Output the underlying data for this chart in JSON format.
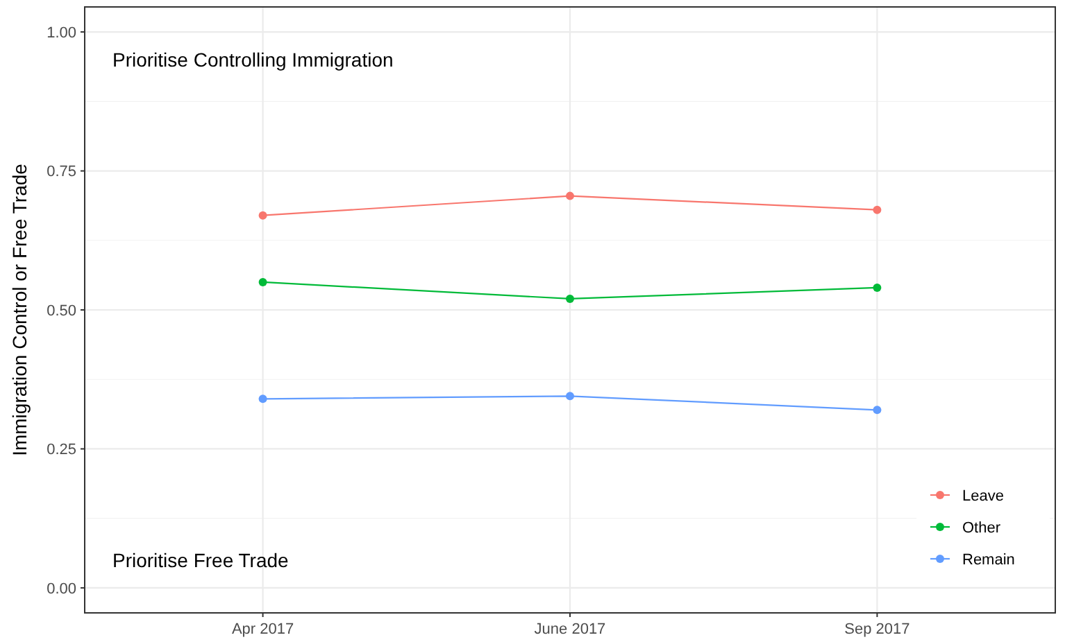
{
  "chart_data": {
    "type": "line",
    "ylabel": "Immigration Control or Free Trade",
    "categories": [
      "Apr 2017",
      "June 2017",
      "Sep 2017"
    ],
    "series": [
      {
        "name": "Leave",
        "color": "#f8766d",
        "values": [
          0.67,
          0.705,
          0.68
        ]
      },
      {
        "name": "Other",
        "color": "#00ba38",
        "values": [
          0.55,
          0.52,
          0.54
        ]
      },
      {
        "name": "Remain",
        "color": "#619cff",
        "values": [
          0.34,
          0.345,
          0.32
        ]
      }
    ],
    "ylim": [
      -0.045,
      1.045
    ],
    "yticks": [
      {
        "value": 0,
        "label": "0.00"
      },
      {
        "value": 0.25,
        "label": "0.25"
      },
      {
        "value": 0.5,
        "label": "0.50"
      },
      {
        "value": 0.75,
        "label": "0.75"
      },
      {
        "value": 1,
        "label": "1.00"
      }
    ],
    "annotations": [
      "Prioritise Controlling Immigration",
      "Prioritise Free Trade"
    ],
    "grid": true,
    "legend": "bottom right",
    "marker": "circle",
    "line_style": "solid"
  }
}
